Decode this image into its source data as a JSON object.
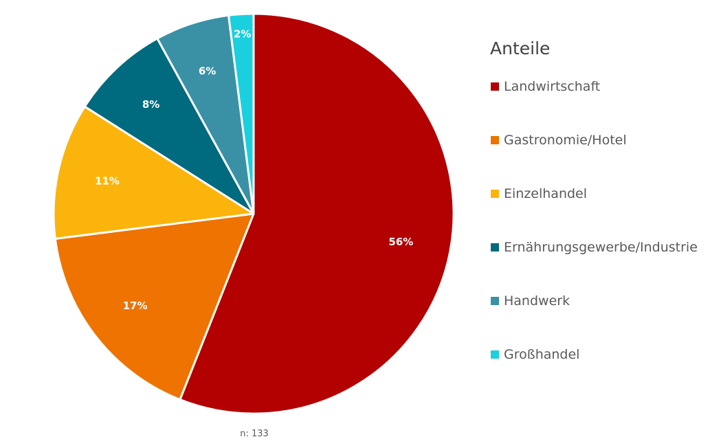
{
  "chart_data": {
    "type": "pie",
    "title": "",
    "legend_title": "Anteile",
    "legend_position": "right",
    "note": "n: 133",
    "start_angle_deg": 0,
    "direction": "clockwise",
    "categories": [
      "Landwirtschaft",
      "Gastronomie/Hotel",
      "Einzelhandel",
      "Ernährungsgewerbe/Industrie",
      "Handwerk",
      "Großhandel"
    ],
    "values": [
      56,
      17,
      11,
      8,
      6,
      2
    ],
    "labels": [
      "56%",
      "17%",
      "11%",
      "8%",
      "6%",
      "2%"
    ],
    "colors": [
      "#b30000",
      "#ee7300",
      "#fbb40c",
      "#006b7e",
      "#3a91a6",
      "#1bd0de"
    ]
  }
}
